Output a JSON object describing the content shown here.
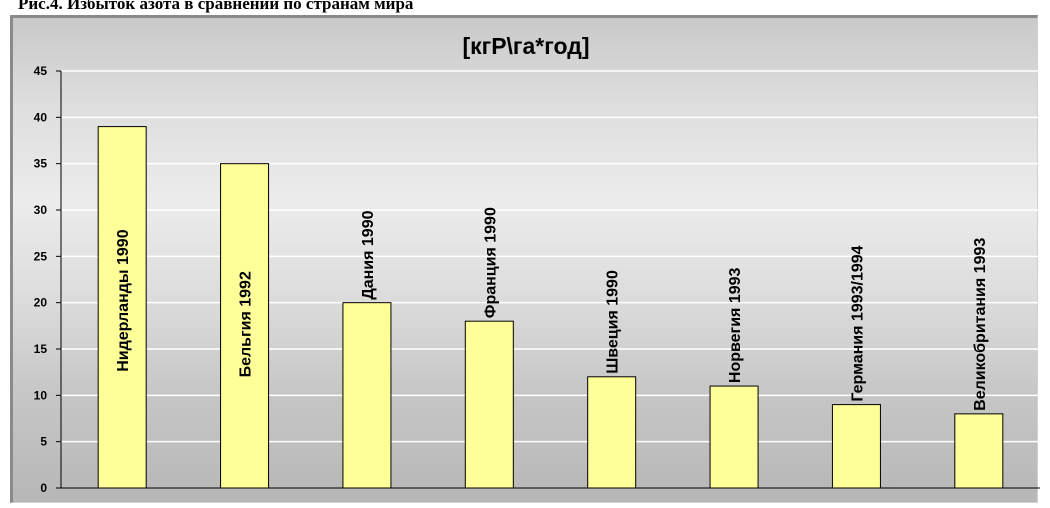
{
  "caption": "Рис.4. Избыток азота в сравнении по странам мира",
  "colors": {
    "bar_fill": "#ffff99",
    "bar_stroke": "#000000",
    "gridline": "#ffffff",
    "axis": "#000000"
  },
  "chart_data": {
    "type": "bar",
    "title": "[кгР\\га*год]",
    "xlabel": "",
    "ylabel": "",
    "categories": [
      "Нидерланды 1990",
      "Бельгия 1992",
      "Дания  1990",
      "Франция 1990",
      "Швеция 1990",
      "Норвегия  1993",
      "Германия 1993/1994",
      "Великобритания  1993"
    ],
    "values": [
      39,
      35,
      20,
      18,
      12,
      11,
      9,
      8
    ],
    "ylim": [
      0,
      45
    ],
    "yticks": [
      0,
      5,
      10,
      15,
      20,
      25,
      30,
      35,
      40,
      45
    ],
    "grid": true,
    "legend": false
  }
}
